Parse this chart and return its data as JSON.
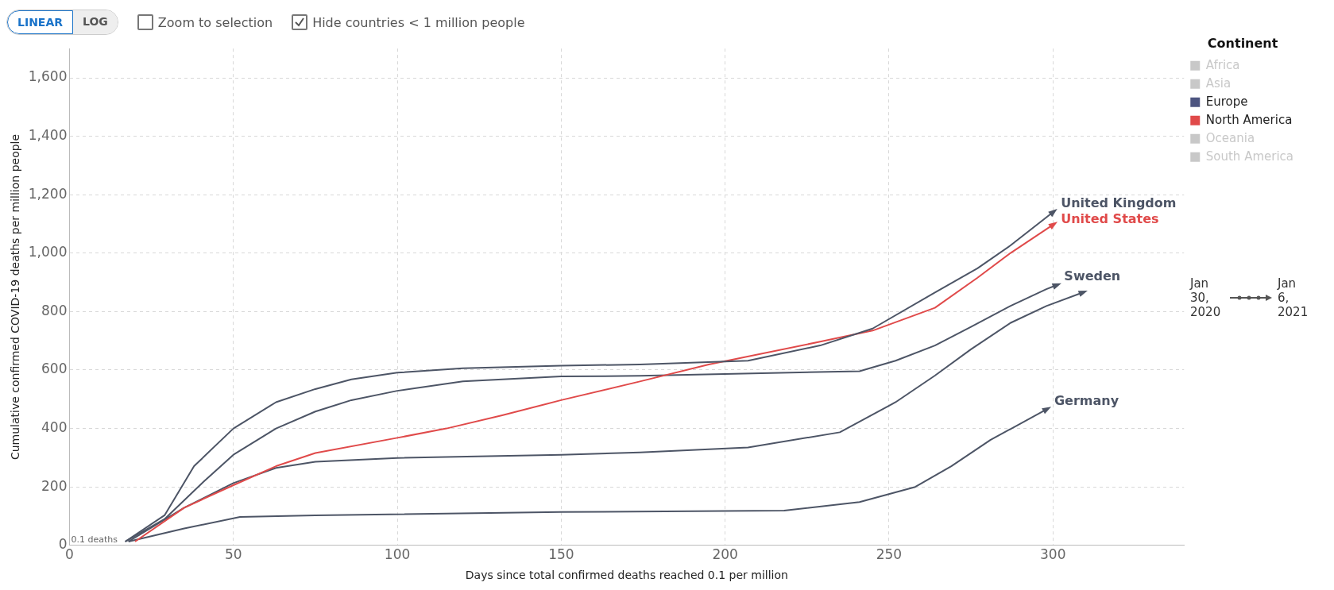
{
  "chart_data": {
    "type": "line",
    "xlabel": "Days since total confirmed deaths reached 0.1 per million",
    "ylabel": "Cumulative confirmed COVID-19 deaths per million people",
    "legend_title": "Continent",
    "legend": "right",
    "grid": true,
    "marker": "none",
    "xlim": [
      0,
      340
    ],
    "xticks": [
      0,
      50,
      100,
      150,
      200,
      250,
      300
    ],
    "ylim": [
      0,
      1700
    ],
    "yticks": [
      0,
      {
        "value": 200,
        "label": "200"
      },
      {
        "value": 400,
        "label": "400"
      },
      {
        "value": 600,
        "label": "600"
      },
      {
        "value": 800,
        "label": "800"
      },
      {
        "value": 1000,
        "label": "1,000"
      },
      {
        "value": 1200,
        "label": "1,200"
      },
      {
        "value": 1400,
        "label": "1,400"
      },
      {
        "value": 1600,
        "label": "1,600"
      }
    ],
    "annotations": [
      "LINEAR",
      "LOG",
      "Zoom to selection",
      "Hide countries < 1 million people",
      "0.1 deaths",
      "Jan 30, 2020",
      "Jan 6, 2021"
    ],
    "series": [
      {
        "name": "United Kingdom",
        "color": "#4d5566",
        "x": [
          17,
          29,
          38,
          50,
          63,
          75,
          86,
          100,
          120,
          150,
          174,
          207,
          229,
          245,
          264,
          277,
          287,
          300
        ],
        "values": [
          13,
          103,
          271,
          400,
          490,
          535,
          568,
          591,
          606,
          615,
          619,
          632,
          684,
          742,
          865,
          948,
          1026,
          1140
        ]
      },
      {
        "name": "United States",
        "color": "#e04a4a",
        "x": [
          20,
          35,
          50,
          63,
          75,
          100,
          115,
          132,
          150,
          174,
          195,
          229,
          245,
          264,
          277,
          287,
          300
        ],
        "values": [
          13,
          129,
          206,
          271,
          316,
          368,
          400,
          445,
          497,
          561,
          619,
          697,
          735,
          813,
          916,
          1000,
          1097
        ]
      },
      {
        "name": "Sweden",
        "color": "#4d5566",
        "x": [
          17,
          29,
          41,
          50,
          63,
          75,
          86,
          100,
          120,
          150,
          174,
          241,
          252,
          264,
          275,
          287,
          298,
          301
        ],
        "values": [
          13,
          90,
          219,
          310,
          400,
          458,
          497,
          529,
          561,
          578,
          580,
          596,
          632,
          684,
          748,
          819,
          877,
          890
        ]
      },
      {
        "color": "#4d5566",
        "x": [
          18,
          35,
          50,
          63,
          75,
          100,
          150,
          174,
          207,
          235,
          252,
          264,
          275,
          287,
          298,
          309
        ],
        "values": [
          13,
          129,
          213,
          265,
          286,
          299,
          310,
          318,
          335,
          387,
          490,
          581,
          671,
          761,
          819,
          865
        ]
      },
      {
        "name": "Germany",
        "color": "#4d5566",
        "x": [
          18,
          35,
          52,
          75,
          150,
          218,
          241,
          258,
          269,
          281,
          298
        ],
        "values": [
          13,
          58,
          97,
          103,
          114,
          119,
          148,
          200,
          271,
          361,
          465
        ]
      },
      {
        "name": "Africa",
        "color": "#c8c8c8"
      },
      {
        "name": "Asia",
        "color": "#c8c8c8"
      },
      {
        "name": "Europe",
        "color": "#4d5580"
      },
      {
        "name": "North America",
        "color": "#e04a4a"
      },
      {
        "name": "Oceania",
        "color": "#c8c8c8"
      },
      {
        "name": "South America",
        "color": "#c8c8c8"
      }
    ]
  }
}
